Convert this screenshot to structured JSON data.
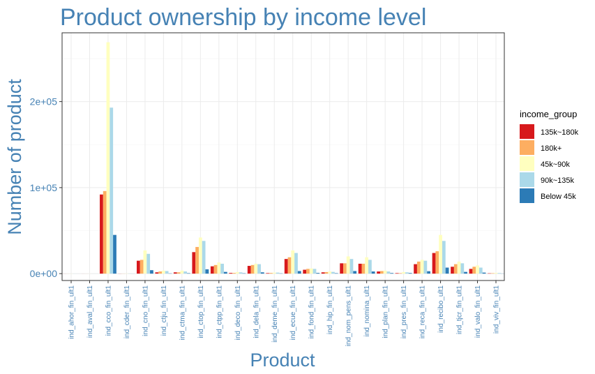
{
  "chart_data": {
    "type": "bar",
    "title": "Product ownership by income level",
    "xlabel": "Product",
    "ylabel": "Number of product",
    "ylim": [
      -8000,
      280000
    ],
    "yticks": [
      0,
      100000,
      200000
    ],
    "ytick_labels": [
      "0e+00",
      "1e+05",
      "2e+05"
    ],
    "grid": true,
    "legend_title": "income_group",
    "legend_position": "right",
    "categories": [
      "ind_ahor_fin_ult1",
      "ind_aval_fin_ult1",
      "ind_cco_fin_ult1",
      "ind_cder_fin_ult1",
      "ind_cno_fin_ult1",
      "ind_ctju_fin_ult1",
      "ind_ctma_fin_ult1",
      "ind_ctop_fin_ult1",
      "ind_ctpp_fin_ult1",
      "ind_deco_fin_ult1",
      "ind_dela_fin_ult1",
      "ind_deme_fin_ult1",
      "ind_ecue_fin_ult1",
      "ind_fond_fin_ult1",
      "ind_hip_fin_ult1",
      "ind_nom_pens_ult1",
      "ind_nomina_ult1",
      "ind_plan_fin_ult1",
      "ind_pres_fin_ult1",
      "ind_reca_fin_ult1",
      "ind_recibo_ult1",
      "ind_tjcr_fin_ult1",
      "ind_valo_fin_ult1",
      "ind_viv_fin_ult1"
    ],
    "series": [
      {
        "name": "135k~180k",
        "color": "#D7191C",
        "values": [
          50,
          30,
          92000,
          100,
          15000,
          1500,
          1500,
          25000,
          8500,
          800,
          9000,
          600,
          17000,
          4500,
          1500,
          12000,
          11500,
          2500,
          600,
          11000,
          24000,
          8000,
          5500,
          400
        ]
      },
      {
        "name": "180k+",
        "color": "#FDAE61",
        "values": [
          50,
          30,
          96000,
          100,
          16000,
          2500,
          1500,
          31000,
          10000,
          800,
          10000,
          800,
          19000,
          5500,
          1800,
          12000,
          11500,
          3000,
          600,
          14000,
          26000,
          11000,
          8000,
          500
        ]
      },
      {
        "name": "45k~90k",
        "color": "#FFFFBF",
        "values": [
          100,
          50,
          269000,
          200,
          27000,
          3500,
          3500,
          42000,
          13000,
          1800,
          11500,
          1200,
          27000,
          6000,
          2500,
          20000,
          19000,
          3500,
          1800,
          16000,
          45000,
          14000,
          9500,
          900
        ]
      },
      {
        "name": "90k~135k",
        "color": "#ABD9E9",
        "values": [
          80,
          40,
          193000,
          200,
          23000,
          3000,
          2500,
          38000,
          11500,
          1500,
          11000,
          1200,
          24000,
          5500,
          2000,
          17000,
          16000,
          2500,
          1500,
          15000,
          38000,
          12000,
          7000,
          700
        ]
      },
      {
        "name": "Below 45k",
        "color": "#2C7BB6",
        "values": [
          20,
          10,
          45000,
          50,
          4000,
          300,
          500,
          5000,
          2000,
          400,
          1500,
          300,
          3000,
          800,
          500,
          3000,
          2500,
          700,
          700,
          2800,
          7000,
          2000,
          1200,
          150
        ]
      }
    ]
  }
}
